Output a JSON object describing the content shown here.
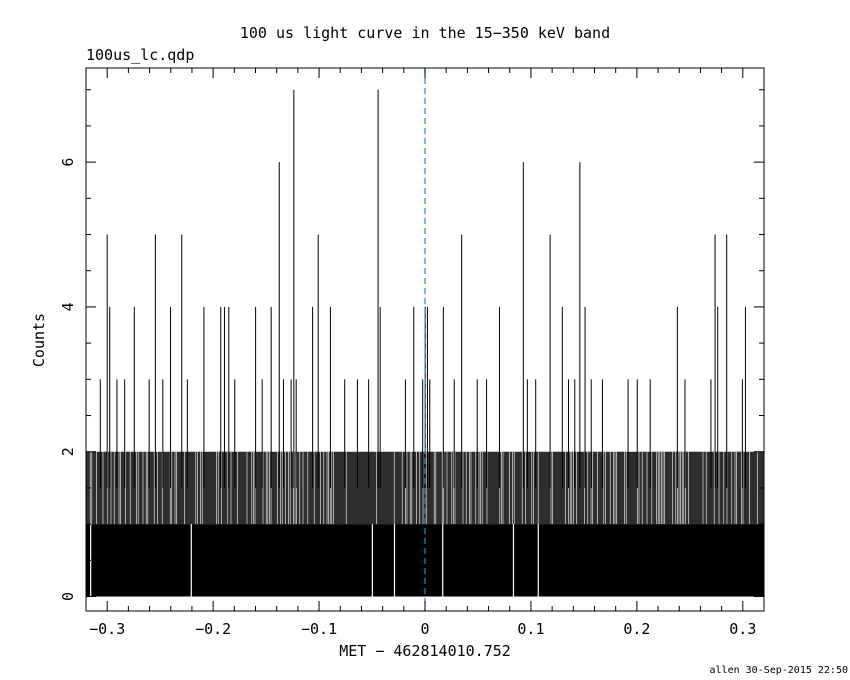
{
  "chart_data": {
    "type": "bar",
    "title": "100 us light curve in the 15−350 keV band",
    "subtitle": "100us_lc.qdp",
    "xlabel": "MET − 462814010.752",
    "ylabel": "Counts",
    "xlim": [
      -0.32,
      0.32
    ],
    "ylim": [
      -0.2,
      7.3
    ],
    "x_ticks": [
      {
        "value": -0.3,
        "label": "−0.3"
      },
      {
        "value": -0.2,
        "label": "−0.2"
      },
      {
        "value": -0.1,
        "label": "−0.1"
      },
      {
        "value": 0,
        "label": "0"
      },
      {
        "value": 0.1,
        "label": "0.1"
      },
      {
        "value": 0.2,
        "label": "0.2"
      },
      {
        "value": 0.3,
        "label": "0.3"
      }
    ],
    "y_ticks": [
      {
        "value": 0,
        "label": "0"
      },
      {
        "value": 2,
        "label": "2"
      },
      {
        "value": 4,
        "label": "4"
      },
      {
        "value": 6,
        "label": "6"
      }
    ],
    "bin_width": 0.0001,
    "trigger_line": {
      "x": 0,
      "color": "#1a8fc9",
      "style": "dashed"
    },
    "spikes": [
      {
        "x": -0.3,
        "counts": 5
      },
      {
        "x": -0.3065,
        "counts": 3
      },
      {
        "x": -0.2976,
        "counts": 4
      },
      {
        "x": -0.2908,
        "counts": 3
      },
      {
        "x": -0.2835,
        "counts": 3
      },
      {
        "x": -0.2744,
        "counts": 4
      },
      {
        "x": -0.2604,
        "counts": 3
      },
      {
        "x": -0.2545,
        "counts": 5
      },
      {
        "x": -0.2475,
        "counts": 3
      },
      {
        "x": -0.2402,
        "counts": 4
      },
      {
        "x": -0.2296,
        "counts": 5
      },
      {
        "x": -0.2243,
        "counts": 3
      },
      {
        "x": -0.2087,
        "counts": 4
      },
      {
        "x": -0.1928,
        "counts": 4
      },
      {
        "x": -0.1893,
        "counts": 4
      },
      {
        "x": -0.1852,
        "counts": 4
      },
      {
        "x": -0.1796,
        "counts": 3
      },
      {
        "x": -0.1599,
        "counts": 4
      },
      {
        "x": -0.1537,
        "counts": 3
      },
      {
        "x": -0.1452,
        "counts": 4
      },
      {
        "x": -0.1376,
        "counts": 6
      },
      {
        "x": -0.1336,
        "counts": 3
      },
      {
        "x": -0.1264,
        "counts": 3
      },
      {
        "x": -0.1238,
        "counts": 7
      },
      {
        "x": -0.1216,
        "counts": 3
      },
      {
        "x": -0.1061,
        "counts": 4
      },
      {
        "x": -0.1008,
        "counts": 5
      },
      {
        "x": -0.0893,
        "counts": 4
      },
      {
        "x": -0.0758,
        "counts": 3
      },
      {
        "x": -0.0638,
        "counts": 3
      },
      {
        "x": -0.0532,
        "counts": 3
      },
      {
        "x": -0.0443,
        "counts": 7
      },
      {
        "x": -0.0423,
        "counts": 4
      },
      {
        "x": -0.0185,
        "counts": 3
      },
      {
        "x": -0.0106,
        "counts": 4
      },
      {
        "x": -0.0022,
        "counts": 3
      },
      {
        "x": 0.0002,
        "counts": 4
      },
      {
        "x": 0.0023,
        "counts": 4
      },
      {
        "x": 0.0045,
        "counts": 3
      },
      {
        "x": 0.0173,
        "counts": 4
      },
      {
        "x": 0.0276,
        "counts": 3
      },
      {
        "x": 0.0346,
        "counts": 5
      },
      {
        "x": 0.0493,
        "counts": 3
      },
      {
        "x": 0.0581,
        "counts": 3
      },
      {
        "x": 0.0703,
        "counts": 4
      },
      {
        "x": 0.0928,
        "counts": 6
      },
      {
        "x": 0.0966,
        "counts": 3
      },
      {
        "x": 0.1045,
        "counts": 3
      },
      {
        "x": 0.1181,
        "counts": 5
      },
      {
        "x": 0.1296,
        "counts": 4
      },
      {
        "x": 0.1355,
        "counts": 3
      },
      {
        "x": 0.1414,
        "counts": 3
      },
      {
        "x": 0.1462,
        "counts": 6
      },
      {
        "x": 0.1511,
        "counts": 4
      },
      {
        "x": 0.1569,
        "counts": 3
      },
      {
        "x": 0.1675,
        "counts": 3
      },
      {
        "x": 0.1917,
        "counts": 3
      },
      {
        "x": 0.2004,
        "counts": 3
      },
      {
        "x": 0.2126,
        "counts": 3
      },
      {
        "x": 0.2382,
        "counts": 4
      },
      {
        "x": 0.2454,
        "counts": 3
      },
      {
        "x": 0.2699,
        "counts": 3
      },
      {
        "x": 0.2738,
        "counts": 5
      },
      {
        "x": 0.2763,
        "counts": 4
      },
      {
        "x": 0.2848,
        "counts": 5
      },
      {
        "x": 0.2996,
        "counts": 3
      },
      {
        "x": 0.3025,
        "counts": 4
      }
    ],
    "gaps": [
      -0.3156,
      -0.2206,
      -0.0497,
      -0.0288,
      0.0167,
      0.0835,
      0.1069
    ]
  },
  "footer": {
    "stamp": "allen 30-Sep-2015 22:50"
  }
}
